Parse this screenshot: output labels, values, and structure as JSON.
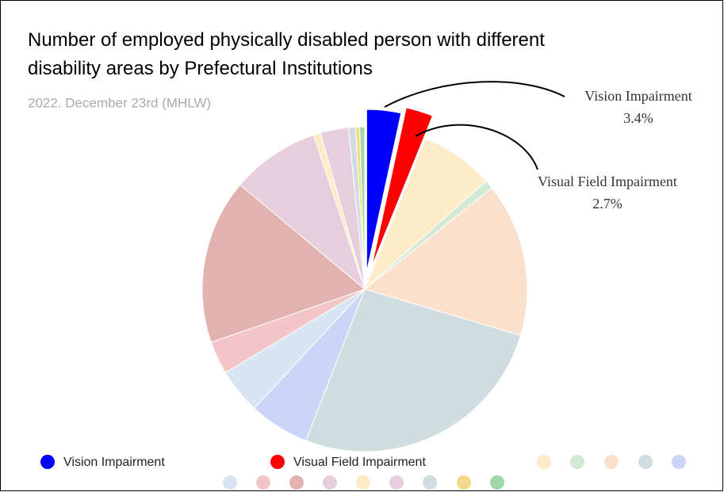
{
  "chart_data": {
    "type": "pie",
    "title": "Number of employed physically disabled person with different disability areas by Prefectural Institutions",
    "subtitle": "2022. December 23rd (MHLW)",
    "categories": [
      "Vision Impairment",
      "Visual Field Impairment",
      null,
      null,
      null,
      null,
      null,
      null,
      null,
      null,
      null,
      null,
      null,
      null,
      null,
      null
    ],
    "values": [
      3.4,
      2.7,
      7.3,
      0.9,
      15.3,
      26.3,
      6.0,
      4.5,
      3.3,
      16.4,
      8.8,
      0.7,
      2.8,
      0.7,
      0.4,
      0.5
    ],
    "value_labels": [
      "3.4%",
      "2.7%",
      null,
      null,
      null,
      null,
      null,
      null,
      null,
      null,
      null,
      null,
      null,
      null,
      null,
      null
    ],
    "colors": [
      "#0000ff",
      "#ff0000",
      "#feebc8",
      "#d4e9d4",
      "#fbe0cc",
      "#cfdce0",
      "#ccd5f5",
      "#d6e5f1",
      "#f2c5c8",
      "#e2b2ae",
      "#e6cedc",
      "#fdebc5",
      "#e6cedc",
      "#cfdce0",
      "#f5d98b",
      "#9fd8a8"
    ],
    "legend": "bottom"
  }
}
